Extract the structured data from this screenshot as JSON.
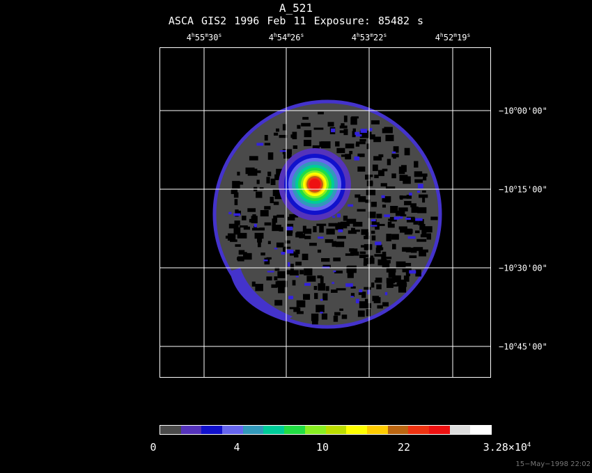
{
  "title": "A_521",
  "subtitle": "ASCA GIS2   1996 Feb 11    Exposure: 85482 s",
  "ra_ticks": [
    {
      "h": "4",
      "m": "55",
      "s": "30"
    },
    {
      "h": "4",
      "m": "54",
      "s": "26"
    },
    {
      "h": "4",
      "m": "53",
      "s": "22"
    },
    {
      "h": "4",
      "m": "52",
      "s": "19"
    }
  ],
  "dec_ticks": [
    {
      "sign": "−10",
      "deg": "o",
      "rest": "00'00\""
    },
    {
      "sign": "−10",
      "deg": "o",
      "rest": "15'00\""
    },
    {
      "sign": "−10",
      "deg": "o",
      "rest": "30'00\""
    },
    {
      "sign": "−10",
      "deg": "o",
      "rest": "45'00\""
    }
  ],
  "colorbar": {
    "labels": [
      "0",
      "4",
      "10",
      "22"
    ],
    "max_label": "3.28×10",
    "max_exp": "4",
    "colors": [
      "#4a4a4a",
      "#5533bb",
      "#1111cc",
      "#6666ee",
      "#3399bb",
      "#00cc99",
      "#22dd44",
      "#88ee22",
      "#bbdd00",
      "#ffff00",
      "#ffcc00",
      "#bb6611",
      "#ee3311",
      "#ee1111",
      "#dddddd",
      "#ffffff"
    ]
  },
  "timestamp": "15−May−1998 22:02",
  "colors": {
    "background": "#000000",
    "field_gray": "#4a4a4a",
    "faint_blue": "#4433cc",
    "peak_red": "#ee1111"
  }
}
